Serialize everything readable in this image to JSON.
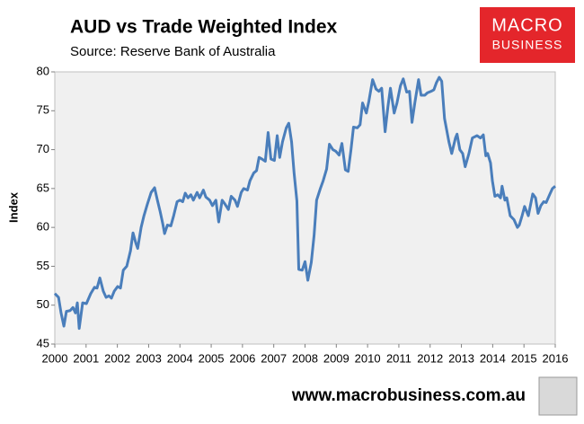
{
  "chart_data": {
    "type": "line",
    "title": "AUD vs Trade Weighted Index",
    "subtitle": "Source: Reserve Bank of Australia",
    "y_label": "Index",
    "color": "#4a7ebb",
    "x": [
      2000.0,
      2000.12,
      2000.2,
      2000.29,
      2000.37,
      2000.49,
      2000.58,
      2000.66,
      2000.72,
      2000.78,
      2000.89,
      2001.01,
      2001.15,
      2001.27,
      2001.35,
      2001.44,
      2001.55,
      2001.64,
      2001.73,
      2001.81,
      2001.9,
      2002.01,
      2002.1,
      2002.19,
      2002.3,
      2002.42,
      2002.5,
      2002.59,
      2002.65,
      2002.76,
      2002.85,
      2002.96,
      2003.08,
      2003.19,
      2003.28,
      2003.37,
      2003.45,
      2003.51,
      2003.6,
      2003.71,
      2003.8,
      2003.91,
      2004.0,
      2004.09,
      2004.17,
      2004.26,
      2004.35,
      2004.43,
      2004.55,
      2004.63,
      2004.75,
      2004.83,
      2004.95,
      2005.04,
      2005.15,
      2005.24,
      2005.35,
      2005.44,
      2005.55,
      2005.64,
      2005.76,
      2005.84,
      2005.96,
      2006.04,
      2006.16,
      2006.24,
      2006.36,
      2006.45,
      2006.53,
      2006.62,
      2006.73,
      2006.82,
      2006.91,
      2007.02,
      2007.11,
      2007.19,
      2007.28,
      2007.4,
      2007.48,
      2007.57,
      2007.65,
      2007.74,
      2007.8,
      2007.91,
      2008.0,
      2008.09,
      2008.2,
      2008.29,
      2008.37,
      2008.49,
      2008.58,
      2008.69,
      2008.78,
      2008.89,
      2008.98,
      2009.09,
      2009.18,
      2009.29,
      2009.38,
      2009.47,
      2009.55,
      2009.67,
      2009.76,
      2009.84,
      2009.96,
      2010.04,
      2010.16,
      2010.27,
      2010.36,
      2010.45,
      2010.56,
      2010.65,
      2010.73,
      2010.85,
      2010.94,
      2011.05,
      2011.14,
      2011.25,
      2011.34,
      2011.42,
      2011.51,
      2011.63,
      2011.71,
      2011.83,
      2011.91,
      2012.03,
      2012.12,
      2012.2,
      2012.29,
      2012.37,
      2012.46,
      2012.6,
      2012.69,
      2012.81,
      2012.86,
      2012.95,
      2013.04,
      2013.12,
      2013.24,
      2013.35,
      2013.5,
      2013.61,
      2013.7,
      2013.78,
      2013.84,
      2013.93,
      2013.99,
      2014.07,
      2014.16,
      2014.25,
      2014.3,
      2014.39,
      2014.45,
      2014.56,
      2014.68,
      2014.79,
      2014.85,
      2014.94,
      2015.02,
      2015.14,
      2015.28,
      2015.37,
      2015.45,
      2015.54,
      2015.63,
      2015.71,
      2015.83,
      2015.91,
      2016.0
    ],
    "values": [
      51.5,
      51,
      49,
      47.3,
      49.2,
      49.3,
      49.7,
      49,
      50.3,
      47,
      50.3,
      50.2,
      51.5,
      52.3,
      52.2,
      53.5,
      51.8,
      51,
      51.2,
      50.9,
      51.8,
      52.4,
      52.2,
      54.5,
      55,
      57,
      59.3,
      58,
      57.3,
      60,
      61.5,
      63,
      64.5,
      65.1,
      63.5,
      62,
      60.5,
      59.2,
      60.3,
      60.2,
      61.5,
      63.3,
      63.5,
      63.3,
      64.4,
      63.8,
      64.2,
      63.5,
      64.5,
      63.8,
      64.8,
      63.9,
      63.5,
      62.8,
      63.5,
      60.7,
      63.5,
      63,
      62.3,
      64,
      63.5,
      62.7,
      64.5,
      65,
      64.8,
      66,
      67,
      67.3,
      69,
      68.8,
      68.5,
      72.2,
      68.8,
      68.6,
      71.8,
      69,
      71,
      72.8,
      73.4,
      71,
      67,
      63.4,
      54.6,
      54.5,
      55.6,
      53.2,
      55.5,
      59,
      63.5,
      65,
      66,
      67.5,
      70.7,
      70,
      69.8,
      69.3,
      70.8,
      67.4,
      67.2,
      70,
      72.9,
      72.8,
      73.2,
      76,
      74.7,
      76.2,
      79,
      77.8,
      77.5,
      77.9,
      72.3,
      75.5,
      77.9,
      74.7,
      76,
      78.2,
      79.1,
      77.4,
      77.5,
      73.5,
      76,
      79,
      77,
      77,
      77.3,
      77.5,
      77.7,
      78.6,
      79.3,
      78.8,
      74,
      71,
      69.5,
      71.5,
      72,
      70,
      69.5,
      67.8,
      69.5,
      71.5,
      71.8,
      71.5,
      71.9,
      69.2,
      69.5,
      68.3,
      66,
      64,
      64.2,
      63.8,
      65.3,
      63.5,
      63.8,
      61.5,
      61,
      60,
      60.3,
      61.5,
      62.7,
      61.5,
      64.3,
      63.8,
      61.8,
      62.8,
      63.3,
      63.2,
      64.3,
      65,
      65.3
    ],
    "xlim": [
      2000,
      2016
    ],
    "xticks": [
      2000,
      2001,
      2002,
      2003,
      2004,
      2005,
      2006,
      2007,
      2008,
      2009,
      2010,
      2011,
      2012,
      2013,
      2014,
      2015,
      2016
    ],
    "ylim": [
      45,
      80
    ],
    "yticks": [
      45,
      50,
      55,
      60,
      65,
      70,
      75,
      80
    ],
    "grid": false
  },
  "logo": [
    "MACRO",
    "BUSINESS"
  ],
  "website": "www.macrobusiness.com.au"
}
